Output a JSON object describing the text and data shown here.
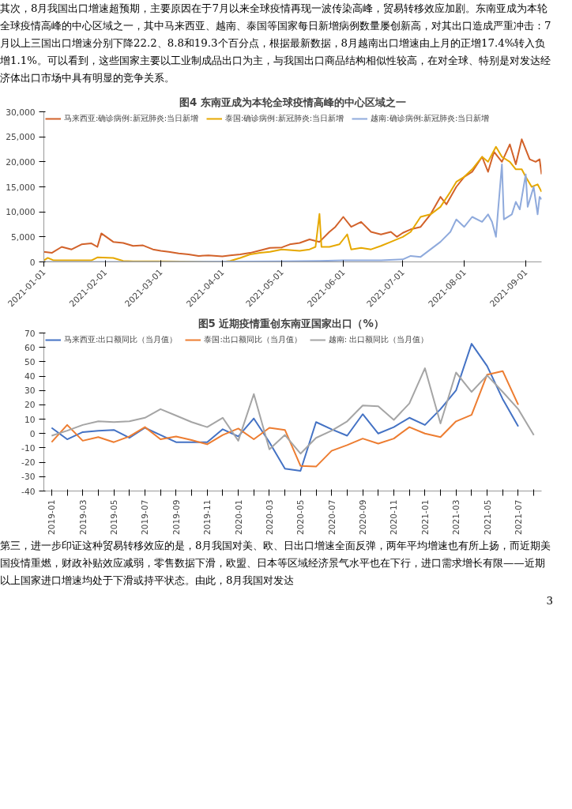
{
  "chart_data": [
    {
      "type": "line",
      "title": "图4 东南亚成为本轮全球疫情高峰的中心区域之一",
      "annotations": [
        "其次，8月我国出口增速超预期，主要原因在于7月以来全球疫情再现一波传染高峰，贸易转移效应加剧。东南亚成为本轮全球疫情高峰的中心区域之一，其中马来西亚、越南、泰国等国家每日新增病例数量屡创新高，对其出口造成严重冲击：7月以上三国出口增速分别下降22.2、8.8和19.3个百分点，根据最新数据，8月越南出口增速由上月的正增17.4%转入负增1.1%。可以看到，这些国家主要以工业制成品出口为主，与我国出口商品结构相似性较高，在对全球、特别是对发达经济体出口市场中具有明显的竞争关系。"
      ],
      "xlim": [
        "2021-01-01",
        "2021-09-09"
      ],
      "xticks": [
        {
          "value": "2021-01-01",
          "label": "2021-01-01"
        },
        {
          "value": "2021-02-01",
          "label": "2021-02-01"
        },
        {
          "value": "2021-03-01",
          "label": "2021-03-01"
        },
        {
          "value": "2021-04-01",
          "label": "2021-04-01"
        },
        {
          "value": "2021-05-01",
          "label": "2021-05-01"
        },
        {
          "value": "2021-06-01",
          "label": "2021-06-01"
        },
        {
          "value": "2021-07-01",
          "label": "2021-07-01"
        },
        {
          "value": "2021-08-01",
          "label": "2021-08-01"
        },
        {
          "value": "2021-09-01",
          "label": "2021-09-01"
        }
      ],
      "ylim": [
        0,
        30000
      ],
      "yticks": [
        0,
        {
          "value": 5000,
          "label": "5,000"
        },
        {
          "value": 10000,
          "label": "10,000"
        },
        {
          "value": 15000,
          "label": "15,000"
        },
        {
          "value": 20000,
          "label": "20,000"
        },
        {
          "value": 25000,
          "label": "25,000"
        },
        {
          "value": 30000,
          "label": "30,000"
        }
      ],
      "grid": false,
      "legend": "top_left",
      "marker": "none",
      "line_style": "solid",
      "series": [
        {
          "name": "马来西亚:确诊病例:新冠肺炎:当日新增",
          "color": "#d2622a",
          "x": [
            "2021-01-01",
            "2021-01-05",
            "2021-01-10",
            "2021-01-15",
            "2021-01-20",
            "2021-01-25",
            "2021-01-28",
            "2021-01-30",
            "2021-02-05",
            "2021-02-10",
            "2021-02-15",
            "2021-02-20",
            "2021-02-25",
            "2021-03-01",
            "2021-03-05",
            "2021-03-10",
            "2021-03-15",
            "2021-03-20",
            "2021-03-25",
            "2021-04-01",
            "2021-04-05",
            "2021-04-10",
            "2021-04-15",
            "2021-04-20",
            "2021-04-25",
            "2021-05-01",
            "2021-05-05",
            "2021-05-10",
            "2021-05-15",
            "2021-05-20",
            "2021-05-25",
            "2021-05-28",
            "2021-06-01",
            "2021-06-05",
            "2021-06-10",
            "2021-06-15",
            "2021-06-20",
            "2021-06-25",
            "2021-06-28",
            "2021-07-01",
            "2021-07-05",
            "2021-07-10",
            "2021-07-15",
            "2021-07-20",
            "2021-07-23",
            "2021-07-28",
            "2021-08-01",
            "2021-08-05",
            "2021-08-10",
            "2021-08-13",
            "2021-08-16",
            "2021-08-20",
            "2021-08-24",
            "2021-08-27",
            "2021-08-30",
            "2021-09-03",
            "2021-09-06",
            "2021-09-08",
            "2021-09-09"
          ],
          "values": [
            2000,
            1800,
            3000,
            2500,
            3500,
            3700,
            3000,
            5700,
            4000,
            3800,
            3200,
            3300,
            2500,
            2200,
            2000,
            1700,
            1500,
            1200,
            1300,
            1100,
            1300,
            1500,
            1800,
            2300,
            2800,
            2900,
            3500,
            3800,
            4500,
            4000,
            6000,
            7000,
            9000,
            7000,
            8000,
            6000,
            5500,
            6000,
            5000,
            5800,
            6500,
            7000,
            9500,
            13000,
            11500,
            15000,
            17000,
            18000,
            21000,
            18000,
            22000,
            20000,
            23500,
            19500,
            24500,
            20500,
            20000,
            20500,
            17500
          ]
        },
        {
          "name": "泰国:确诊病例:新冠肺炎:当日新增",
          "color": "#e6a800",
          "x": [
            "2021-01-01",
            "2021-01-03",
            "2021-01-06",
            "2021-01-25",
            "2021-01-28",
            "2021-02-05",
            "2021-02-10",
            "2021-02-15",
            "2021-03-01",
            "2021-04-01",
            "2021-04-05",
            "2021-04-10",
            "2021-04-15",
            "2021-04-20",
            "2021-04-25",
            "2021-05-01",
            "2021-05-10",
            "2021-05-15",
            "2021-05-18",
            "2021-05-20",
            "2021-05-21",
            "2021-05-25",
            "2021-05-30",
            "2021-06-01",
            "2021-06-03",
            "2021-06-05",
            "2021-06-10",
            "2021-06-15",
            "2021-06-20",
            "2021-06-25",
            "2021-07-01",
            "2021-07-05",
            "2021-07-10",
            "2021-07-15",
            "2021-07-20",
            "2021-07-25",
            "2021-07-28",
            "2021-08-01",
            "2021-08-05",
            "2021-08-10",
            "2021-08-13",
            "2021-08-17",
            "2021-08-20",
            "2021-08-24",
            "2021-08-27",
            "2021-08-30",
            "2021-09-01",
            "2021-09-04",
            "2021-09-07",
            "2021-09-09"
          ],
          "values": [
            300,
            800,
            300,
            300,
            900,
            800,
            200,
            100,
            100,
            0,
            200,
            800,
            1500,
            1800,
            2000,
            2500,
            2200,
            2500,
            3000,
            9600,
            3000,
            3000,
            3500,
            4500,
            5500,
            2500,
            2800,
            2500,
            3200,
            4000,
            5000,
            6000,
            9000,
            9500,
            11000,
            14000,
            16000,
            17000,
            18500,
            21000,
            20000,
            23000,
            21000,
            20000,
            18500,
            18500,
            17000,
            15000,
            15500,
            14000
          ]
        },
        {
          "name": "越南:确诊病例:新冠肺炎:当日新增",
          "color": "#8faadc",
          "x": [
            "2021-01-01",
            "2021-03-01",
            "2021-05-01",
            "2021-05-20",
            "2021-06-01",
            "2021-06-20",
            "2021-07-01",
            "2021-07-05",
            "2021-07-10",
            "2021-07-15",
            "2021-07-20",
            "2021-07-25",
            "2021-07-28",
            "2021-08-01",
            "2021-08-05",
            "2021-08-10",
            "2021-08-13",
            "2021-08-15",
            "2021-08-17",
            "2021-08-18",
            "2021-08-20",
            "2021-08-21",
            "2021-08-25",
            "2021-08-27",
            "2021-08-29",
            "2021-09-01",
            "2021-09-02",
            "2021-09-05",
            "2021-09-07",
            "2021-09-08",
            "2021-09-09"
          ],
          "values": [
            0,
            0,
            100,
            200,
            300,
            300,
            500,
            1200,
            1000,
            2500,
            4000,
            6000,
            8500,
            7000,
            9000,
            8000,
            9500,
            8000,
            5000,
            10000,
            19500,
            8500,
            9500,
            12000,
            10500,
            17500,
            11000,
            15000,
            9500,
            13000,
            12500
          ]
        }
      ]
    },
    {
      "type": "line",
      "title": "图5  近期疫情重创东南亚国家出口（%）",
      "annotations": [
        "第三，进一步印证这种贸易转移效应的是，8月我国对美、欧、日出口增速全面反弹，两年平均增速也有所上扬，而近期美国疫情重燃，财政补贴效应减弱，零售数据下滑，欧盟、日本等区域经济景气水平也在下行，进口需求增长有限——近期以上国家进口增速均处于下滑或持平状态。由此，8月我国对发达",
        "3"
      ],
      "categories": [
        "2019-01",
        null,
        "2019-03",
        null,
        "2019-05",
        null,
        "2019-07",
        null,
        "2019-09",
        null,
        "2019-11",
        null,
        "2020-01",
        null,
        "2020-03",
        null,
        "2020-05",
        null,
        "2020-07",
        null,
        "2020-09",
        null,
        "2020-11",
        null,
        "2021-01",
        null,
        "2021-03",
        null,
        "2021-05",
        null,
        "2021-07",
        null
      ],
      "ylim": [
        -40,
        70
      ],
      "yticks": [
        -40,
        -30,
        -20,
        -10,
        0,
        10,
        20,
        30,
        40,
        50,
        60,
        70
      ],
      "grid": false,
      "legend": "top_left",
      "marker": "none",
      "line_style": "solid",
      "series": [
        {
          "name": "马来西亚:出口额同比（当月值）",
          "color": "#4472c4",
          "values": [
            4,
            -4,
            1,
            2,
            2.5,
            -3,
            4,
            -1,
            -6,
            -6,
            -6,
            3,
            -2,
            10.5,
            -6,
            -24.5,
            -26,
            8,
            3,
            -1.5,
            13.5,
            0,
            4.5,
            11,
            6,
            17,
            30,
            62.5,
            47,
            24,
            5,
            null
          ]
        },
        {
          "name": "泰国:出口额同比（当月值）",
          "color": "#ed7d31",
          "values": [
            -6,
            6,
            -5,
            -2.5,
            -6,
            -2,
            4.5,
            -4,
            -2,
            -4.5,
            -7.5,
            -1,
            3.5,
            -4,
            4,
            2.5,
            -22.5,
            -23,
            -12,
            -8,
            -3.5,
            -7,
            -3.5,
            4.5,
            0,
            -2.5,
            8.5,
            13,
            41,
            43.5,
            20,
            null
          ]
        },
        {
          "name": "越南: 出口额同比（当月值）",
          "color": "#a5a5a5",
          "values": [
            -1.5,
            2,
            6,
            8.5,
            8,
            8.5,
            11,
            17,
            12.5,
            8,
            4.5,
            11,
            -5,
            27.5,
            -11,
            -1,
            -14,
            -3,
            2,
            8.5,
            19.5,
            19,
            9.5,
            21,
            45.5,
            7,
            42.5,
            29,
            40.5,
            29,
            17,
            -1.1
          ]
        }
      ]
    }
  ]
}
